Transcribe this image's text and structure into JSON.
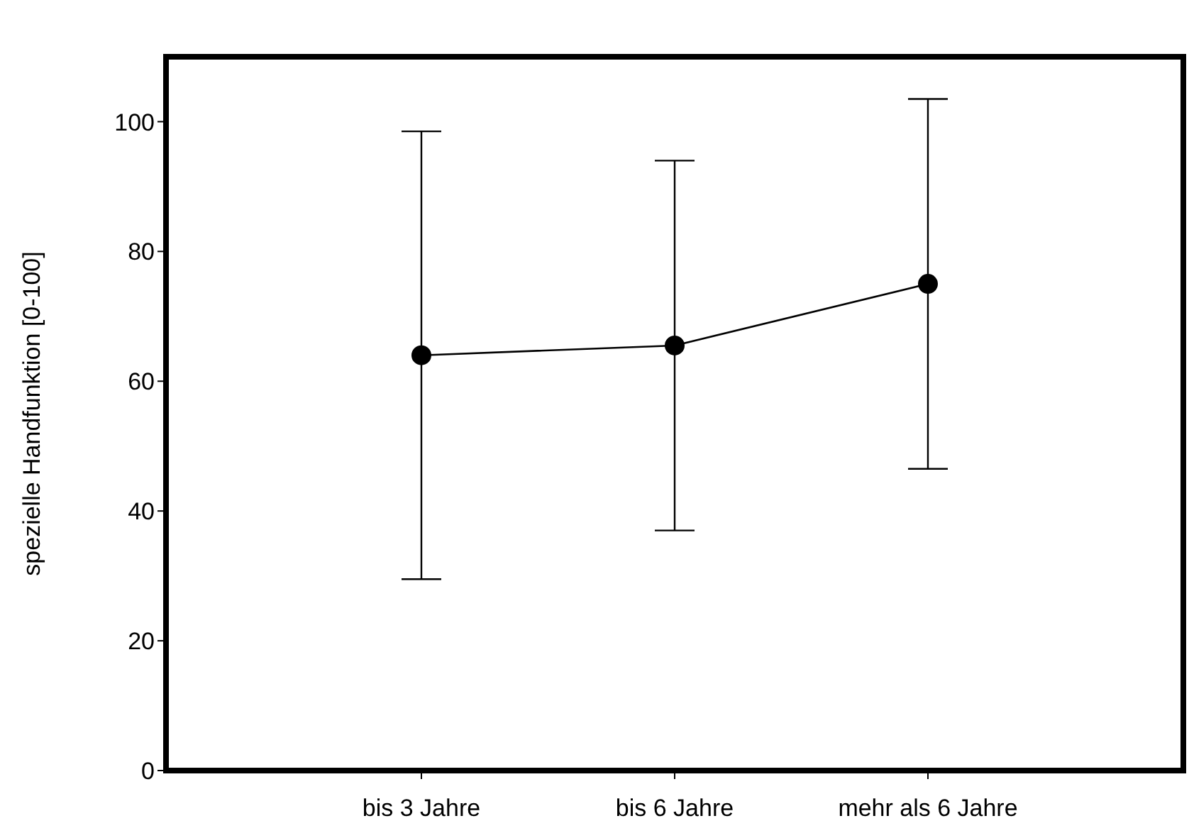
{
  "chart_data": {
    "type": "line",
    "ylabel": "spezielle Handfunktion [0-100]",
    "categories": [
      "bis 3 Jahre",
      "bis 6 Jahre",
      "mehr als 6 Jahre"
    ],
    "series": [
      {
        "color": "#000000",
        "values": [
          64,
          65.5,
          75
        ],
        "errors": [
          [
            29.5,
            98.5
          ],
          [
            37,
            94
          ],
          [
            46.5,
            103.5
          ]
        ]
      }
    ],
    "ylim": [
      0,
      110
    ],
    "yticks": [
      0,
      20,
      40,
      60,
      80,
      100
    ],
    "marker": "circle",
    "line_style": "solid"
  }
}
